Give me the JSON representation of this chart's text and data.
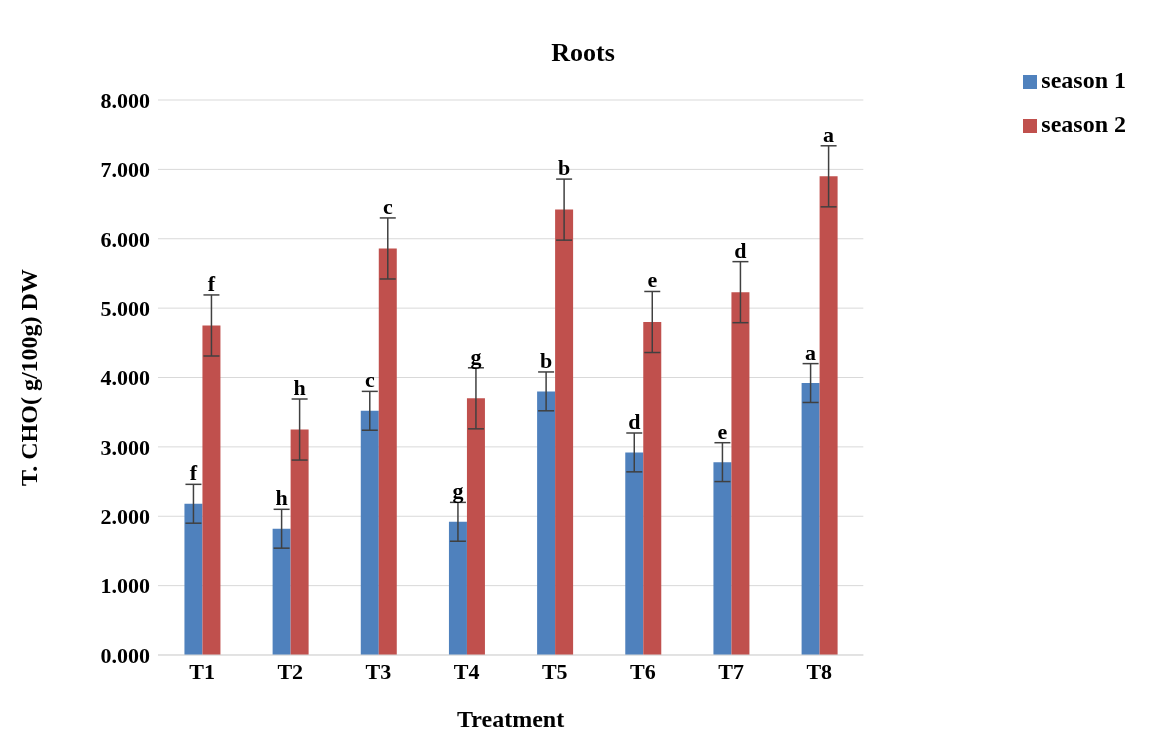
{
  "chart_data": {
    "type": "bar",
    "title": "Roots",
    "xlabel": "Treatment",
    "ylabel": "T. CHO( g/100g) DW",
    "categories": [
      "T1",
      "T2",
      "T3",
      "T4",
      "T5",
      "T6",
      "T7",
      "T8"
    ],
    "series": [
      {
        "name": "season 1",
        "color": "#4f81bd",
        "values": [
          2.18,
          1.82,
          3.52,
          1.92,
          3.8,
          2.92,
          2.78,
          3.92
        ],
        "errors": [
          0.28,
          0.28,
          0.28,
          0.28,
          0.28,
          0.28,
          0.28,
          0.28
        ],
        "value_labels": [
          "f",
          "h",
          "c",
          "g",
          "b",
          "d",
          "e",
          "a"
        ]
      },
      {
        "name": "season 2",
        "color": "#c0504d",
        "values": [
          4.75,
          3.25,
          5.86,
          3.7,
          6.42,
          4.8,
          5.23,
          6.9
        ],
        "errors": [
          0.44,
          0.44,
          0.44,
          0.44,
          0.44,
          0.44,
          0.44,
          0.44
        ],
        "value_labels": [
          "f",
          "h",
          "c",
          "g",
          "b",
          "e",
          "d",
          "a"
        ]
      }
    ],
    "ylim": [
      0,
      8
    ],
    "yticks": [
      {
        "value": 0,
        "label": "0.000"
      },
      {
        "value": 1,
        "label": "1.000"
      },
      {
        "value": 2,
        "label": "2.000"
      },
      {
        "value": 3,
        "label": "3.000"
      },
      {
        "value": 4,
        "label": "4.000"
      },
      {
        "value": 5,
        "label": "5.000"
      },
      {
        "value": 6,
        "label": "6.000"
      },
      {
        "value": 7,
        "label": "7.000"
      },
      {
        "value": 8,
        "label": "8.000"
      }
    ],
    "grid": "y",
    "legend": "top right"
  }
}
